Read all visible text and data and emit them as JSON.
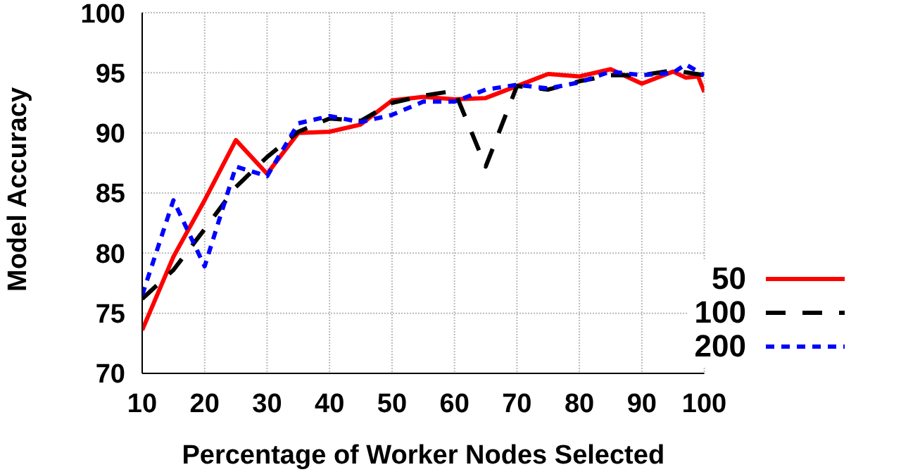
{
  "chart_data": {
    "type": "line",
    "xlabel": "Percentage of Worker Nodes Selected",
    "ylabel": "Model Accuracy",
    "xlim": [
      10,
      100
    ],
    "xticks": [
      10,
      20,
      30,
      40,
      50,
      60,
      70,
      80,
      90,
      100
    ],
    "ylim": [
      70,
      100
    ],
    "yticks": [
      70,
      75,
      80,
      85,
      90,
      95,
      100
    ],
    "grid": true,
    "legend": "bottom right",
    "marker": "none",
    "series": [
      {
        "name": "50",
        "color": "#ff0000",
        "line_style": "solid",
        "x": [
          10,
          15,
          20,
          25,
          30,
          35,
          40,
          45,
          50,
          55,
          60,
          65,
          70,
          75,
          80,
          85,
          90,
          95,
          97,
          99,
          100
        ],
        "values": [
          73.6,
          79.7,
          84.4,
          89.4,
          86.6,
          90.0,
          90.1,
          90.7,
          92.7,
          93.0,
          92.8,
          92.9,
          93.9,
          94.9,
          94.7,
          95.3,
          94.1,
          95.1,
          94.6,
          94.7,
          93.4
        ]
      },
      {
        "name": "100",
        "color": "#000000",
        "line_style": "dashed",
        "x": [
          10,
          15,
          20,
          25,
          30,
          35,
          40,
          45,
          50,
          55,
          60,
          65,
          70,
          75,
          80,
          85,
          90,
          95,
          100
        ],
        "values": [
          76.2,
          78.6,
          82.0,
          85.5,
          88.0,
          90.1,
          91.2,
          91.0,
          92.5,
          93.1,
          93.5,
          87.2,
          93.9,
          93.6,
          94.3,
          94.8,
          94.8,
          95.2,
          94.8
        ]
      },
      {
        "name": "200",
        "color": "#0000ff",
        "line_style": "dotted",
        "x": [
          10,
          15,
          20,
          25,
          30,
          35,
          40,
          45,
          50,
          55,
          60,
          65,
          70,
          75,
          80,
          85,
          90,
          95,
          97,
          100
        ],
        "values": [
          76.5,
          84.4,
          78.9,
          87.2,
          86.4,
          90.8,
          91.4,
          90.9,
          91.5,
          92.6,
          92.6,
          93.6,
          94.0,
          93.7,
          94.2,
          95.1,
          94.8,
          95.0,
          95.7,
          94.8
        ]
      }
    ]
  }
}
